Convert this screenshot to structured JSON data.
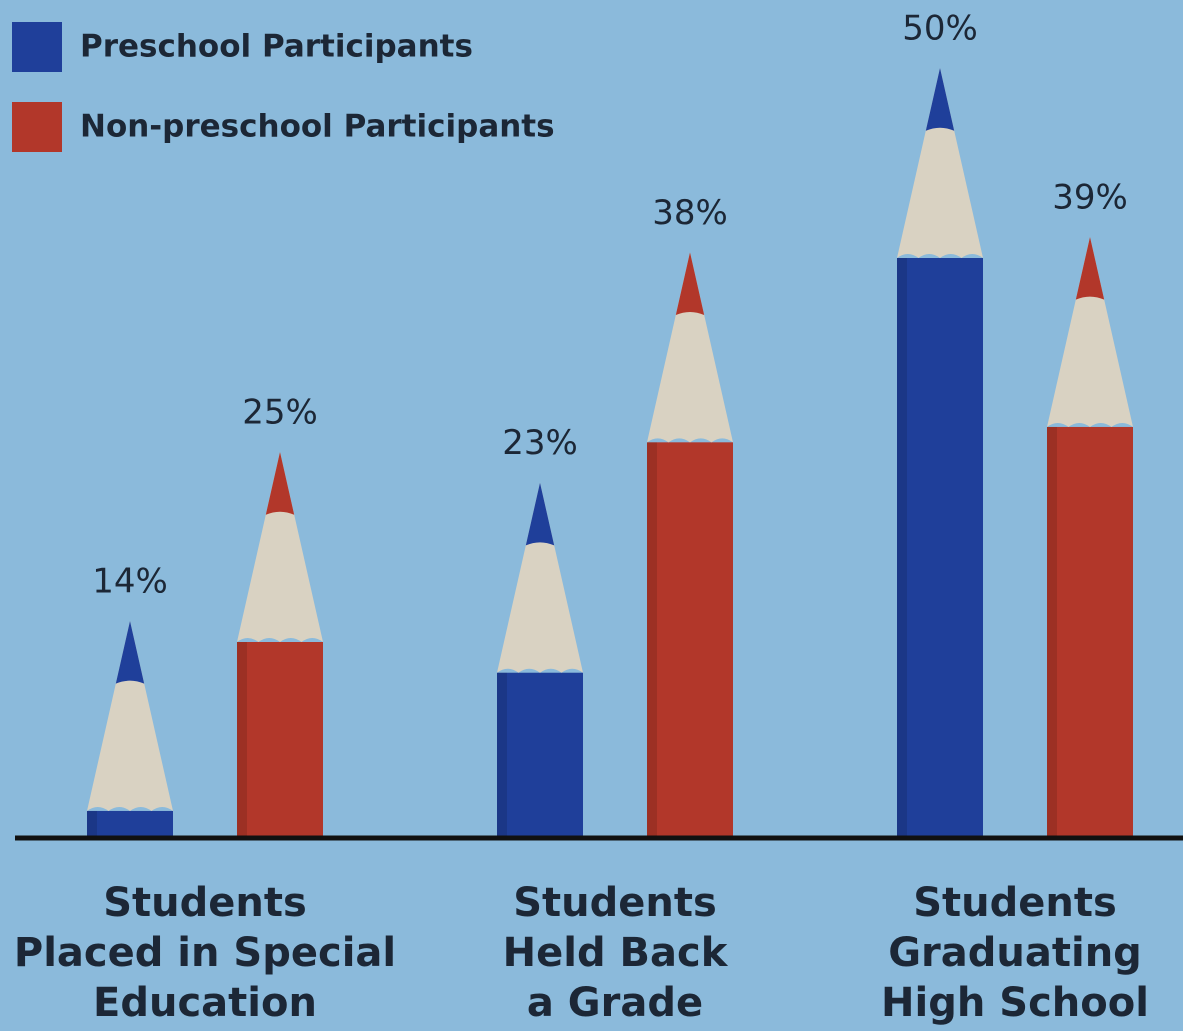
{
  "chart_data": {
    "type": "pencil-bar",
    "categories": [
      [
        "Students",
        "Placed in Special",
        "Education"
      ],
      [
        "Students",
        "Held Back",
        "a Grade"
      ],
      [
        "Students",
        "Graduating",
        "High School"
      ]
    ],
    "series": [
      {
        "name": "Preschool Participants",
        "color": "#1f3f9a",
        "values": [
          14,
          23,
          50
        ],
        "value_labels": [
          "14%",
          "23%",
          "50%"
        ]
      },
      {
        "name": "Non-preschool Participants",
        "color": "#b2372a",
        "values": [
          25,
          38,
          39
        ],
        "value_labels": [
          "25%",
          "38%",
          "39%"
        ]
      }
    ]
  }
}
